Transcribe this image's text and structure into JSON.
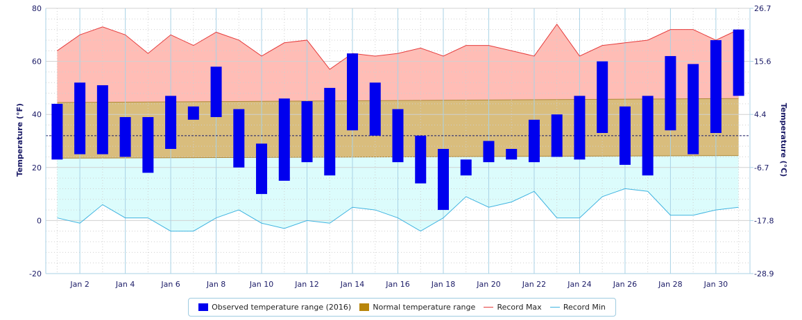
{
  "chart_data": {
    "type": "bar",
    "ylabel": "Temperature (°F)",
    "ylabel_right": "Temperature (°C)",
    "ylim": [
      -20,
      80
    ],
    "y_ticks": [
      -20,
      0,
      20,
      40,
      60,
      80
    ],
    "y2_ticks": [
      "-28.9",
      "-17.8",
      "-6.7",
      "4.4",
      "15.6",
      "26.7"
    ],
    "x_tick_labels": [
      "Jan 2",
      "Jan 4",
      "Jan 6",
      "Jan 8",
      "Jan 10",
      "Jan 12",
      "Jan 14",
      "Jan 16",
      "Jan 18",
      "Jan 20",
      "Jan 22",
      "Jan 24",
      "Jan 26",
      "Jan 28",
      "Jan 30"
    ],
    "x_tick_days": [
      2,
      4,
      6,
      8,
      10,
      12,
      14,
      16,
      18,
      20,
      22,
      24,
      26,
      28,
      30
    ],
    "days": [
      1,
      2,
      3,
      4,
      5,
      6,
      7,
      8,
      9,
      10,
      11,
      12,
      13,
      14,
      15,
      16,
      17,
      18,
      19,
      20,
      21,
      22,
      23,
      24,
      25,
      26,
      27,
      28,
      29,
      30,
      31
    ],
    "reference_line": 32,
    "grid": true,
    "legend_position": "bottom",
    "series": [
      {
        "name": "Observed temperature range (2016)",
        "color": "#0000ee",
        "low": [
          23,
          25,
          25,
          24,
          18,
          27,
          38,
          39,
          20,
          10,
          15,
          22,
          17,
          34,
          32,
          22,
          14,
          4,
          17,
          22,
          23,
          22,
          24,
          23,
          33,
          21,
          17,
          34,
          25,
          33,
          47
        ],
        "high": [
          44,
          52,
          51,
          39,
          39,
          47,
          43,
          58,
          42,
          29,
          46,
          45,
          50,
          63,
          52,
          42,
          32,
          27,
          23,
          30,
          27,
          38,
          40,
          47,
          60,
          43,
          47,
          62,
          59,
          68,
          72
        ]
      },
      {
        "name": "Normal temperature range",
        "color": "#b8860b",
        "low": [
          23.5,
          24.5
        ],
        "high": [
          44.5,
          46
        ]
      },
      {
        "name": "Record Max",
        "color": "#e53b3b",
        "values": [
          64,
          70,
          73,
          70,
          63,
          70,
          66,
          71,
          68,
          62,
          67,
          68,
          57,
          63,
          62,
          63,
          65,
          62,
          66,
          66,
          64,
          62,
          74,
          62,
          66,
          67,
          68,
          72,
          72,
          68,
          72
        ]
      },
      {
        "name": "Record Min",
        "color": "#3fb3e0",
        "values": [
          1,
          -1,
          6,
          1,
          1,
          -4,
          -4,
          1,
          4,
          -1,
          -3,
          0,
          -1,
          5,
          4,
          1,
          -4,
          1,
          9,
          5,
          7,
          11,
          1,
          1,
          9,
          12,
          11,
          2,
          2,
          4,
          5
        ]
      }
    ]
  }
}
